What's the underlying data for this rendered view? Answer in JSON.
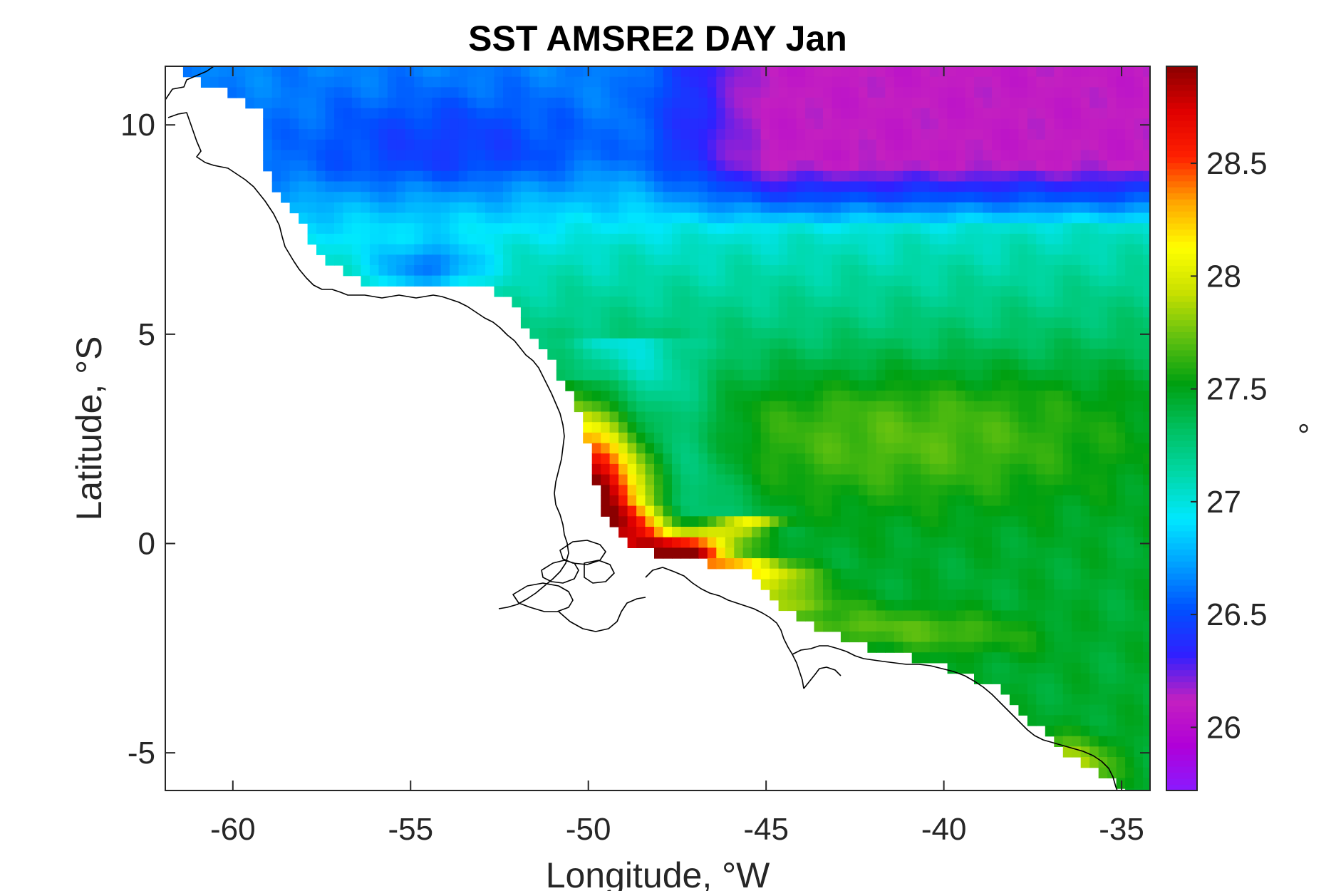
{
  "chart_data": {
    "type": "heatmap",
    "title": "SST AMSRE2 DAY Jan",
    "xlabel": "Longitude, °W",
    "ylabel": "Latitude, °S",
    "colorbar_label": "°",
    "xlim": [
      -61.9,
      -34.2
    ],
    "ylim": [
      -5.9,
      11.4
    ],
    "xticks": [
      -60,
      -55,
      -50,
      -45,
      -40,
      -35
    ],
    "xtick_labels": [
      "-60",
      "-55",
      "-50",
      "-45",
      "-40",
      "-35"
    ],
    "yticks": [
      -5,
      0,
      5,
      10
    ],
    "ytick_labels": [
      "-5",
      "0",
      "5",
      "10"
    ],
    "clim": [
      25.72,
      28.93
    ],
    "cticks": [
      26,
      26.5,
      27,
      27.5,
      28,
      28.5
    ],
    "ctick_labels": [
      "26",
      "26.5",
      "27",
      "27.5",
      "28",
      "28.5"
    ],
    "colormap": [
      "#8b1aff",
      "#b000d8",
      "#c420c0",
      "#3020ff",
      "#0050ff",
      "#00a0ff",
      "#00e8ff",
      "#00d8a8",
      "#00c060",
      "#00a010",
      "#60c010",
      "#c8e000",
      "#ffff00",
      "#ffa500",
      "#ff2000",
      "#e00000",
      "#8b0000"
    ],
    "grid_resolution_deg": 0.25,
    "field_features": [
      {
        "name": "northern-cool-pool",
        "lon": -40.5,
        "lat": 9.8,
        "sst": 26.1
      },
      {
        "name": "northwest-cool-band",
        "lon": -54,
        "lat": 9.5,
        "sst": 26.65
      },
      {
        "name": "coastal-cool-pocket",
        "lon": -54.5,
        "lat": 6.6,
        "sst": 26.45
      },
      {
        "name": "amazon-plume-warm-core",
        "lon": -48.5,
        "lat": 1.0,
        "sst": 28.9
      },
      {
        "name": "central-warm-patch",
        "lon": -41,
        "lat": 2.5,
        "sst": 27.75
      },
      {
        "name": "southeast-coastal-warm",
        "lon": -36.5,
        "lat": -5.3,
        "sst": 28.0
      }
    ],
    "grid": false,
    "colorbar_position": "right"
  }
}
